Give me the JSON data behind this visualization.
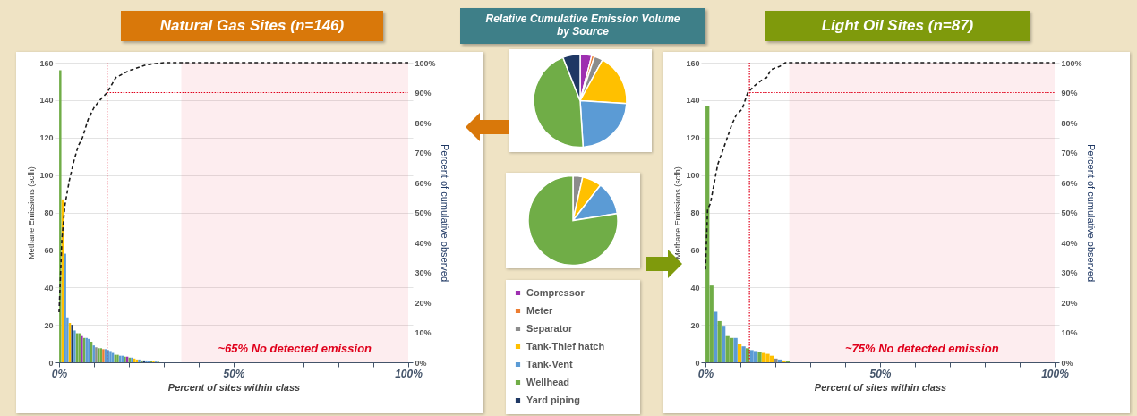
{
  "chart_data": [
    {
      "type": "bar",
      "title": "Natural Gas Sites (n=146)",
      "xlabel": "Percent of sites within class",
      "ylabel": "Methane Emissions (scfh)",
      "y2label": "Percent of cumulative observed",
      "xlim": [
        0,
        100
      ],
      "xticks": [
        {
          "value": 0,
          "label": "0%"
        },
        {
          "value": 10,
          "label": null
        },
        {
          "value": 20,
          "label": null
        },
        {
          "value": 30,
          "label": null
        },
        {
          "value": 40,
          "label": null
        },
        {
          "value": 50,
          "label": "50%"
        },
        {
          "value": 60,
          "label": null
        },
        {
          "value": 70,
          "label": null
        },
        {
          "value": 80,
          "label": null
        },
        {
          "value": 90,
          "label": null
        },
        {
          "value": 100,
          "label": "100%"
        }
      ],
      "ylim": [
        0,
        160
      ],
      "yticks": [
        0,
        20,
        40,
        60,
        80,
        100,
        120,
        140,
        160
      ],
      "y2lim": [
        0,
        100
      ],
      "y2ticks": [
        {
          "value": 0,
          "label": "0%"
        },
        {
          "value": 10,
          "label": "10%"
        },
        {
          "value": 20,
          "label": "20%"
        },
        {
          "value": 30,
          "label": "30%"
        },
        {
          "value": 40,
          "label": "40%"
        },
        {
          "value": 50,
          "label": "50%"
        },
        {
          "value": 60,
          "label": "60%"
        },
        {
          "value": 70,
          "label": "70%"
        },
        {
          "value": 80,
          "label": "80%"
        },
        {
          "value": 90,
          "label": "90%"
        },
        {
          "value": 100,
          "label": "100%"
        }
      ],
      "grid": "y",
      "series": [
        {
          "type": "bar",
          "x": [
            0.34,
            1.03,
            1.71,
            2.4,
            3.08,
            3.77,
            4.45,
            5.14,
            5.82,
            6.51,
            7.19,
            7.88,
            8.56,
            9.25,
            9.93,
            10.62,
            11.3,
            11.99,
            12.67,
            13.36,
            14.04,
            14.73,
            15.41,
            16.1,
            16.78,
            17.47,
            18.15,
            18.84,
            19.52,
            20.21,
            20.89,
            21.58,
            22.26,
            22.95,
            23.63,
            24.32,
            25.0,
            25.68,
            26.37,
            27.05,
            27.74,
            28.42
          ],
          "values": [
            156,
            87,
            58,
            24,
            21,
            20,
            17,
            15.5,
            15.5,
            14,
            13,
            13,
            12.5,
            11,
            9,
            8,
            7.5,
            7.5,
            7,
            7,
            6.5,
            6,
            5,
            4,
            4,
            3.5,
            3.5,
            3,
            3,
            2.5,
            2.5,
            2,
            1.5,
            1.5,
            1,
            1,
            1,
            0.8,
            0.6,
            0.5,
            0.4,
            0.3
          ],
          "colors": [
            "#70ad47",
            "#ffc000",
            "#5b9bd5",
            "#5b9bd5",
            "#ffc000",
            "#1f3864",
            "#5b9bd5",
            "#70ad47",
            "#70ad47",
            "#9e2fb0",
            "#70ad47",
            "#5b9bd5",
            "#5b9bd5",
            "#70ad47",
            "#5b9bd5",
            "#8c8c8c",
            "#70ad47",
            "#70ad47",
            "#ed7d31",
            "#5b9bd5",
            "#5b9bd5",
            "#5b9bd5",
            "#5b9bd5",
            "#70ad47",
            "#70ad47",
            "#5b9bd5",
            "#5b9bd5",
            "#70ad47",
            "#9e2fb0",
            "#70ad47",
            "#5b9bd5",
            "#ffc000",
            "#ffc000",
            "#5b9bd5",
            "#70ad47",
            "#1f3864",
            "#5b9bd5",
            "#5b9bd5",
            "#70ad47",
            "#ffc000",
            "#5b9bd5",
            "#70ad47"
          ]
        },
        {
          "type": "line",
          "axis": "y2",
          "color": "#1a1a1a",
          "line_style": "dashed",
          "x": [
            0,
            0.8,
            1.7,
            2.9,
            4.2,
            5.4,
            6.7,
            8.3,
            10,
            11.7,
            13.75,
            16.25,
            20,
            25,
            30,
            100
          ],
          "values": [
            16.7,
            41,
            52.6,
            60.5,
            67,
            72,
            75,
            81,
            85,
            87.5,
            90,
            95,
            97.3,
            99.3,
            100,
            100
          ]
        }
      ],
      "ref_lines": [
        {
          "axis": "x",
          "value": 13.75,
          "color": "#e0001b",
          "line_style": "dotted"
        },
        {
          "axis": "y2",
          "value": 90,
          "color": "#e0001b",
          "line_style": "dotted"
        }
      ],
      "bands": [
        {
          "axis": "x",
          "from": 35,
          "to": 100,
          "label": "~65% No detected emission",
          "color": "#e0001b"
        }
      ]
    },
    {
      "type": "pie",
      "title": "Relative Cumulative Emission Volume by Source",
      "categories": [
        null,
        null,
        null,
        null,
        null,
        null,
        null
      ],
      "values": [
        4,
        1,
        3,
        18,
        23,
        45,
        6
      ],
      "colors": [
        "#9e2fb0",
        "#ed7d31",
        "#8c8c8c",
        "#ffc000",
        "#5b9bd5",
        "#70ad47",
        "#1f3864"
      ]
    },
    {
      "type": "pie",
      "categories": [
        "Compressor",
        "Meter",
        "Separator",
        "Tank-Thief hatch",
        "Tank-Vent",
        "Wellhead",
        "Yard piping"
      ],
      "values": [
        null,
        null,
        3.5,
        7,
        12,
        77.5,
        null
      ],
      "colors": [
        "#9e2fb0",
        "#ed7d31",
        "#8c8c8c",
        "#ffc000",
        "#5b9bd5",
        "#70ad47",
        "#1f3864"
      ],
      "legend": "bottom"
    },
    {
      "type": "bar",
      "title": "Light Oil Sites (n=87)",
      "xlabel": "Percent of sites within class",
      "ylabel": "Methane Emissions (scfh)",
      "y2label": "Percent of cumulative observed",
      "xlim": [
        0,
        100
      ],
      "xticks": [
        {
          "value": 0,
          "label": "0%"
        },
        {
          "value": 10,
          "label": null
        },
        {
          "value": 20,
          "label": null
        },
        {
          "value": 30,
          "label": null
        },
        {
          "value": 40,
          "label": null
        },
        {
          "value": 50,
          "label": "50%"
        },
        {
          "value": 60,
          "label": null
        },
        {
          "value": 70,
          "label": null
        },
        {
          "value": 80,
          "label": null
        },
        {
          "value": 90,
          "label": null
        },
        {
          "value": 100,
          "label": "100%"
        }
      ],
      "ylim": [
        0,
        160
      ],
      "yticks": [
        0,
        20,
        40,
        60,
        80,
        100,
        120,
        140,
        160
      ],
      "y2lim": [
        0,
        100
      ],
      "y2ticks": [
        {
          "value": 0,
          "label": "0%"
        },
        {
          "value": 10,
          "label": "10%"
        },
        {
          "value": 20,
          "label": "20%"
        },
        {
          "value": 30,
          "label": "30%"
        },
        {
          "value": 40,
          "label": "40%"
        },
        {
          "value": 50,
          "label": "50%"
        },
        {
          "value": 60,
          "label": "60%"
        },
        {
          "value": 70,
          "label": "70%"
        },
        {
          "value": 80,
          "label": "80%"
        },
        {
          "value": 90,
          "label": "90%"
        },
        {
          "value": 100,
          "label": "100%"
        }
      ],
      "grid": "y",
      "series": [
        {
          "type": "bar",
          "x": [
            0.57,
            1.72,
            2.87,
            4.02,
            5.17,
            6.32,
            7.47,
            8.62,
            9.77,
            10.92,
            12.07,
            13.22,
            14.37,
            15.52,
            16.67,
            17.82,
            18.97,
            20.11,
            21.26,
            22.41,
            23.56
          ],
          "values": [
            137,
            41,
            27,
            22,
            19.5,
            14,
            13,
            13,
            10,
            8.5,
            7.5,
            6.5,
            6,
            5.5,
            5,
            4.5,
            3.5,
            2,
            1.5,
            1,
            0.5
          ],
          "colors": [
            "#70ad47",
            "#70ad47",
            "#5b9bd5",
            "#70ad47",
            "#5b9bd5",
            "#70ad47",
            "#70ad47",
            "#5b9bd5",
            "#ffc000",
            "#5b9bd5",
            "#70ad47",
            "#5b9bd5",
            "#5b9bd5",
            "#70ad47",
            "#ffc000",
            "#ffc000",
            "#ffc000",
            "#8c8c8c",
            "#5b9bd5",
            "#ffc000",
            "#70ad47"
          ]
        },
        {
          "type": "line",
          "axis": "y2",
          "color": "#1a1a1a",
          "line_style": "dashed",
          "x": [
            0,
            0.6,
            1.4,
            3.5,
            5.5,
            7.6,
            8.8,
            10.5,
            12.1,
            13.8,
            15.9,
            17.5,
            18.8,
            21.2,
            22.9,
            100
          ],
          "values": [
            31,
            51,
            53,
            66,
            72.5,
            79.5,
            82.5,
            84.5,
            90,
            92,
            94,
            95,
            97.7,
            98.7,
            100,
            100
          ]
        }
      ],
      "ref_lines": [
        {
          "axis": "x",
          "value": 12.6,
          "color": "#e0001b",
          "line_style": "dotted"
        },
        {
          "axis": "y2",
          "value": 90,
          "color": "#e0001b",
          "line_style": "dotted"
        }
      ],
      "bands": [
        {
          "axis": "x",
          "from": 24,
          "to": 100,
          "label": "~75% No detected emission",
          "color": "#e0001b"
        }
      ]
    }
  ]
}
